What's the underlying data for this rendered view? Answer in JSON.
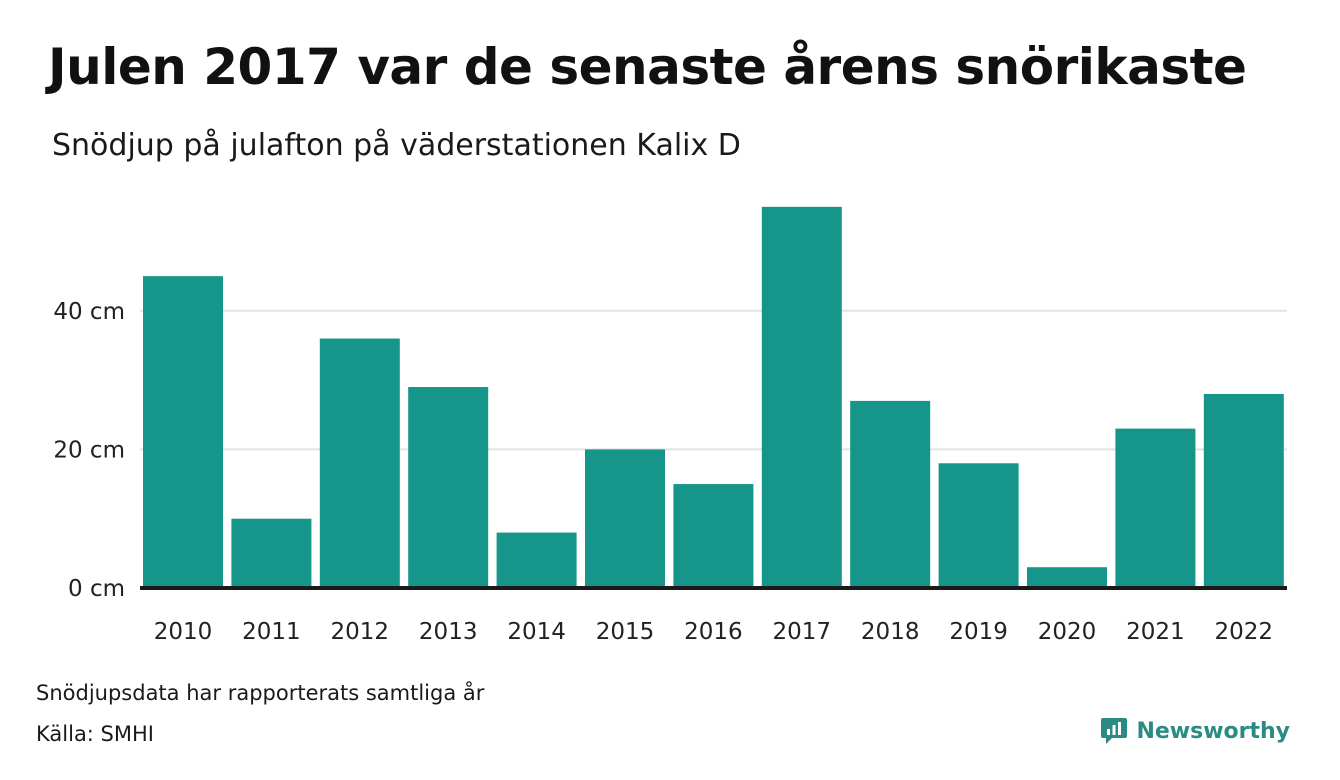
{
  "title": "Julen 2017 var de senaste årens snörikaste",
  "subtitle": "Snödjup på julafton på väderstationen Kalix D",
  "footer": {
    "note": "Snödjupsdata har rapporterats samtliga år",
    "source": "Källa: SMHI",
    "brand": "Newsworthy",
    "brand_icon": "newsworthy-logo-icon"
  },
  "colors": {
    "bar": "#16968a",
    "grid": "#e3e3e3",
    "baseline": "#1a1a1a",
    "brand": "#2b8b83"
  },
  "chart_data": {
    "type": "bar",
    "categories": [
      "2010",
      "2011",
      "2012",
      "2013",
      "2014",
      "2015",
      "2016",
      "2017",
      "2018",
      "2019",
      "2020",
      "2021",
      "2022"
    ],
    "values": [
      45,
      10,
      36,
      29,
      8,
      20,
      15,
      55,
      27,
      18,
      3,
      23,
      28
    ],
    "yticks": [
      0,
      20,
      40
    ],
    "ytick_labels": [
      "0 cm",
      "20 cm",
      "40 cm"
    ],
    "ylim": [
      0,
      58
    ],
    "xlabel": "",
    "ylabel": "",
    "grid": true
  }
}
